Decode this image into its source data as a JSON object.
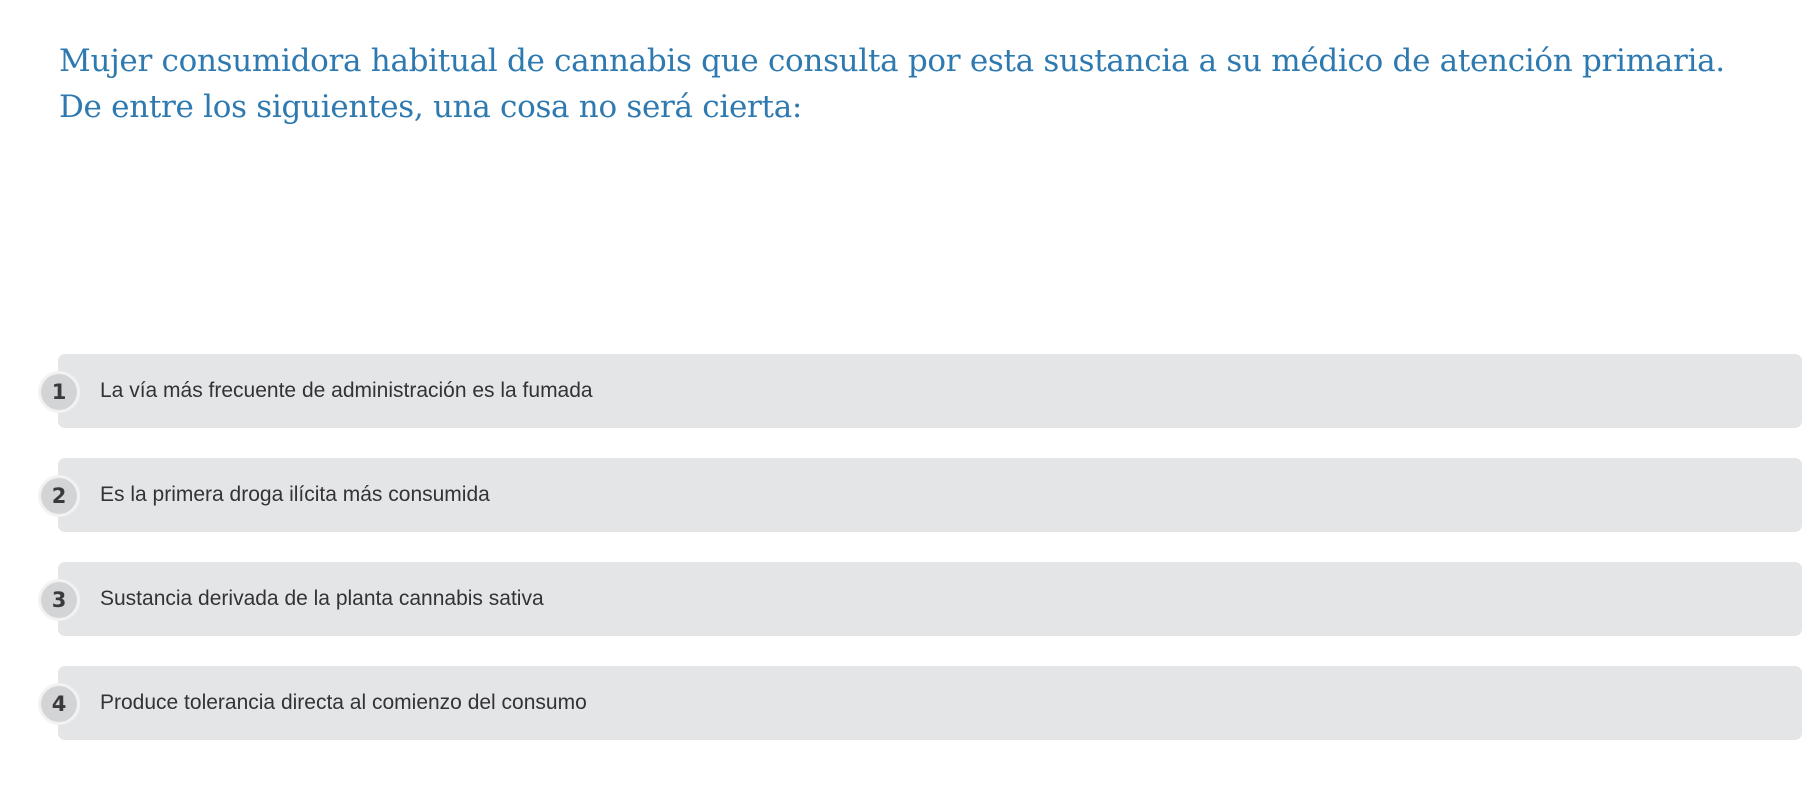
{
  "question": {
    "line1": "Mujer consumidora habitual de cannabis que consulta por esta sustancia a su médico de atención primaria.",
    "line2": "De entre los siguientes, una cosa no será cierta:"
  },
  "options": [
    {
      "number": "1",
      "label": "La vía más frecuente de administración es la fumada"
    },
    {
      "number": "2",
      "label": "Es la primera droga ilícita más consumida"
    },
    {
      "number": "3",
      "label": "Sustancia derivada de la planta cannabis sativa"
    },
    {
      "number": "4",
      "label": "Produce tolerancia directa al comienzo del consumo"
    }
  ],
  "colors": {
    "question_text": "#2e7ab0",
    "option_background": "#e4e5e7",
    "number_badge": "#d3d4d6"
  }
}
